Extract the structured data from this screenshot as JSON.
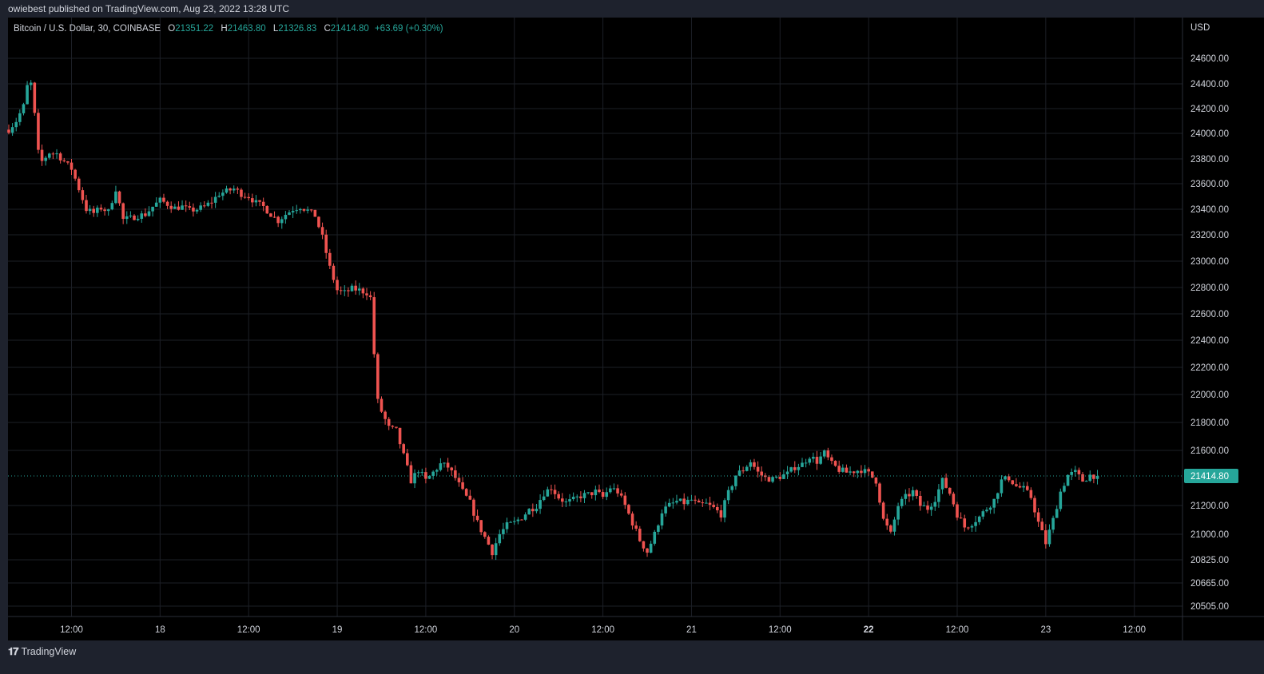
{
  "publisher_line": "owiebest published on TradingView.com, Aug 23, 2022 13:28 UTC",
  "legend": {
    "symbol": "Bitcoin / U.S. Dollar, 30, COINBASE",
    "o_label": "O",
    "o_value": "21351.22",
    "h_label": "H",
    "h_value": "21463.80",
    "l_label": "L",
    "l_value": "21326.83",
    "c_label": "C",
    "c_value": "21414.80",
    "change": "+63.69 (+0.30%)"
  },
  "brand": {
    "logo": "𝟏𝟕",
    "name": "TradingView"
  },
  "colors": {
    "up": "#26a69a",
    "down": "#ef5350",
    "background": "#000000",
    "panel": "#1e222d",
    "grid": "#1c1f26",
    "text": "#d1d4dc",
    "last_price_bg": "#26a69a"
  },
  "chart_data": {
    "type": "candlestick",
    "currency_label": "USD",
    "last_price": 21414.8,
    "last_price_label": "21414.80",
    "y_ticks": [
      {
        "value": 24600,
        "label": "24600.00"
      },
      {
        "value": 24400,
        "label": "24400.00"
      },
      {
        "value": 24200,
        "label": "24200.00"
      },
      {
        "value": 24000,
        "label": "24000.00"
      },
      {
        "value": 23800,
        "label": "23800.00"
      },
      {
        "value": 23600,
        "label": "23600.00"
      },
      {
        "value": 23400,
        "label": "23400.00"
      },
      {
        "value": 23200,
        "label": "23200.00"
      },
      {
        "value": 23000,
        "label": "23000.00"
      },
      {
        "value": 22800,
        "label": "22800.00"
      },
      {
        "value": 22600,
        "label": "22600.00"
      },
      {
        "value": 22400,
        "label": "22400.00"
      },
      {
        "value": 22200,
        "label": "22200.00"
      },
      {
        "value": 22000,
        "label": "22000.00"
      },
      {
        "value": 21800,
        "label": "21800.00"
      },
      {
        "value": 21600,
        "label": "21600.00"
      },
      {
        "value": 21200,
        "label": "21200.00"
      },
      {
        "value": 21000,
        "label": "21000.00"
      },
      {
        "value": 20825,
        "label": "20825.00"
      },
      {
        "value": 20665,
        "label": "20665.00"
      },
      {
        "value": 20505,
        "label": "20505.00"
      }
    ],
    "x_ticks": [
      {
        "hours": 12,
        "label": "12:00",
        "bold": false
      },
      {
        "hours": 24,
        "label": "18",
        "bold": false
      },
      {
        "hours": 36,
        "label": "12:00",
        "bold": false
      },
      {
        "hours": 48,
        "label": "19",
        "bold": false
      },
      {
        "hours": 60,
        "label": "12:00",
        "bold": false
      },
      {
        "hours": 72,
        "label": "20",
        "bold": false
      },
      {
        "hours": 84,
        "label": "12:00",
        "bold": false
      },
      {
        "hours": 96,
        "label": "21",
        "bold": false
      },
      {
        "hours": 108,
        "label": "12:00",
        "bold": false
      },
      {
        "hours": 120,
        "label": "22",
        "bold": true
      },
      {
        "hours": 132,
        "label": "12:00",
        "bold": false
      },
      {
        "hours": 144,
        "label": "23",
        "bold": false
      },
      {
        "hours": 156,
        "label": "12:00",
        "bold": false
      }
    ],
    "x_range": [
      3.5,
      163.5
    ],
    "bar_interval_hours": 0.5,
    "close_path": [
      [
        3.5,
        24030
      ],
      [
        4.5,
        24100
      ],
      [
        5.5,
        24220
      ],
      [
        6.0,
        24380
      ],
      [
        6.5,
        24400
      ],
      [
        7.0,
        24150
      ],
      [
        7.5,
        23850
      ],
      [
        8.0,
        23780
      ],
      [
        9.0,
        23850
      ],
      [
        10.0,
        23840
      ],
      [
        11.0,
        23780
      ],
      [
        12.0,
        23720
      ],
      [
        13.0,
        23560
      ],
      [
        14.0,
        23400
      ],
      [
        15.0,
        23370
      ],
      [
        16.0,
        23410
      ],
      [
        17.0,
        23380
      ],
      [
        18.0,
        23560
      ],
      [
        19.0,
        23320
      ],
      [
        20.0,
        23330
      ],
      [
        21.0,
        23350
      ],
      [
        22.0,
        23360
      ],
      [
        23.0,
        23420
      ],
      [
        24.0,
        23470
      ],
      [
        25.0,
        23440
      ],
      [
        26.0,
        23410
      ],
      [
        27.0,
        23420
      ],
      [
        28.0,
        23390
      ],
      [
        29.0,
        23400
      ],
      [
        30.0,
        23420
      ],
      [
        31.0,
        23460
      ],
      [
        32.0,
        23520
      ],
      [
        33.0,
        23540
      ],
      [
        34.0,
        23560
      ],
      [
        35.0,
        23520
      ],
      [
        36.0,
        23500
      ],
      [
        37.0,
        23450
      ],
      [
        38.0,
        23420
      ],
      [
        39.0,
        23360
      ],
      [
        40.0,
        23310
      ],
      [
        41.0,
        23360
      ],
      [
        42.0,
        23400
      ],
      [
        43.0,
        23420
      ],
      [
        44.0,
        23390
      ],
      [
        45.0,
        23350
      ],
      [
        46.0,
        23180
      ],
      [
        47.0,
        22950
      ],
      [
        48.0,
        22780
      ],
      [
        49.0,
        22760
      ],
      [
        50.0,
        22790
      ],
      [
        51.0,
        22780
      ],
      [
        52.0,
        22760
      ],
      [
        52.5,
        22720
      ],
      [
        53.0,
        22300
      ],
      [
        53.5,
        21950
      ],
      [
        54.0,
        21880
      ],
      [
        55.0,
        21760
      ],
      [
        56.0,
        21740
      ],
      [
        57.0,
        21560
      ],
      [
        58.0,
        21380
      ],
      [
        59.0,
        21460
      ],
      [
        60.0,
        21380
      ],
      [
        61.0,
        21440
      ],
      [
        62.0,
        21500
      ],
      [
        63.0,
        21480
      ],
      [
        64.0,
        21400
      ],
      [
        65.0,
        21300
      ],
      [
        66.0,
        21220
      ],
      [
        67.0,
        21080
      ],
      [
        68.0,
        20980
      ],
      [
        69.0,
        20880
      ],
      [
        70.0,
        21000
      ],
      [
        71.0,
        21060
      ],
      [
        72.0,
        21080
      ],
      [
        73.0,
        21120
      ],
      [
        74.0,
        21170
      ],
      [
        75.0,
        21200
      ],
      [
        76.0,
        21290
      ],
      [
        77.0,
        21330
      ],
      [
        78.0,
        21260
      ],
      [
        79.0,
        21220
      ],
      [
        80.0,
        21240
      ],
      [
        81.0,
        21270
      ],
      [
        82.0,
        21280
      ],
      [
        83.0,
        21300
      ],
      [
        84.0,
        21260
      ],
      [
        85.0,
        21330
      ],
      [
        86.0,
        21300
      ],
      [
        87.0,
        21200
      ],
      [
        88.0,
        21080
      ],
      [
        89.0,
        20960
      ],
      [
        90.0,
        20880
      ],
      [
        91.0,
        21000
      ],
      [
        92.0,
        21160
      ],
      [
        93.0,
        21200
      ],
      [
        94.0,
        21230
      ],
      [
        95.0,
        21220
      ],
      [
        96.0,
        21240
      ],
      [
        97.0,
        21200
      ],
      [
        98.0,
        21210
      ],
      [
        99.0,
        21180
      ],
      [
        100.0,
        21140
      ],
      [
        101.0,
        21290
      ],
      [
        102.0,
        21420
      ],
      [
        103.0,
        21460
      ],
      [
        104.0,
        21520
      ],
      [
        105.0,
        21440
      ],
      [
        106.0,
        21400
      ],
      [
        107.0,
        21390
      ],
      [
        108.0,
        21410
      ],
      [
        109.0,
        21430
      ],
      [
        110.0,
        21480
      ],
      [
        111.0,
        21500
      ],
      [
        112.0,
        21560
      ],
      [
        113.0,
        21520
      ],
      [
        114.0,
        21580
      ],
      [
        115.0,
        21500
      ],
      [
        116.0,
        21460
      ],
      [
        117.0,
        21440
      ],
      [
        118.0,
        21450
      ],
      [
        119.0,
        21460
      ],
      [
        120.0,
        21430
      ],
      [
        121.0,
        21380
      ],
      [
        122.0,
        21100
      ],
      [
        123.0,
        21000
      ],
      [
        124.0,
        21200
      ],
      [
        125.0,
        21260
      ],
      [
        126.0,
        21300
      ],
      [
        127.0,
        21200
      ],
      [
        128.0,
        21180
      ],
      [
        129.0,
        21250
      ],
      [
        130.0,
        21380
      ],
      [
        131.0,
        21290
      ],
      [
        132.0,
        21140
      ],
      [
        133.0,
        21050
      ],
      [
        134.0,
        21080
      ],
      [
        135.0,
        21120
      ],
      [
        136.0,
        21180
      ],
      [
        137.0,
        21240
      ],
      [
        138.0,
        21380
      ],
      [
        139.0,
        21400
      ],
      [
        140.0,
        21340
      ],
      [
        141.0,
        21320
      ],
      [
        142.0,
        21260
      ],
      [
        143.0,
        21080
      ],
      [
        144.0,
        20940
      ],
      [
        145.0,
        21100
      ],
      [
        146.0,
        21300
      ],
      [
        147.0,
        21420
      ],
      [
        148.0,
        21440
      ],
      [
        149.0,
        21380
      ],
      [
        150.0,
        21420
      ],
      [
        151.0,
        21414.8
      ]
    ]
  }
}
